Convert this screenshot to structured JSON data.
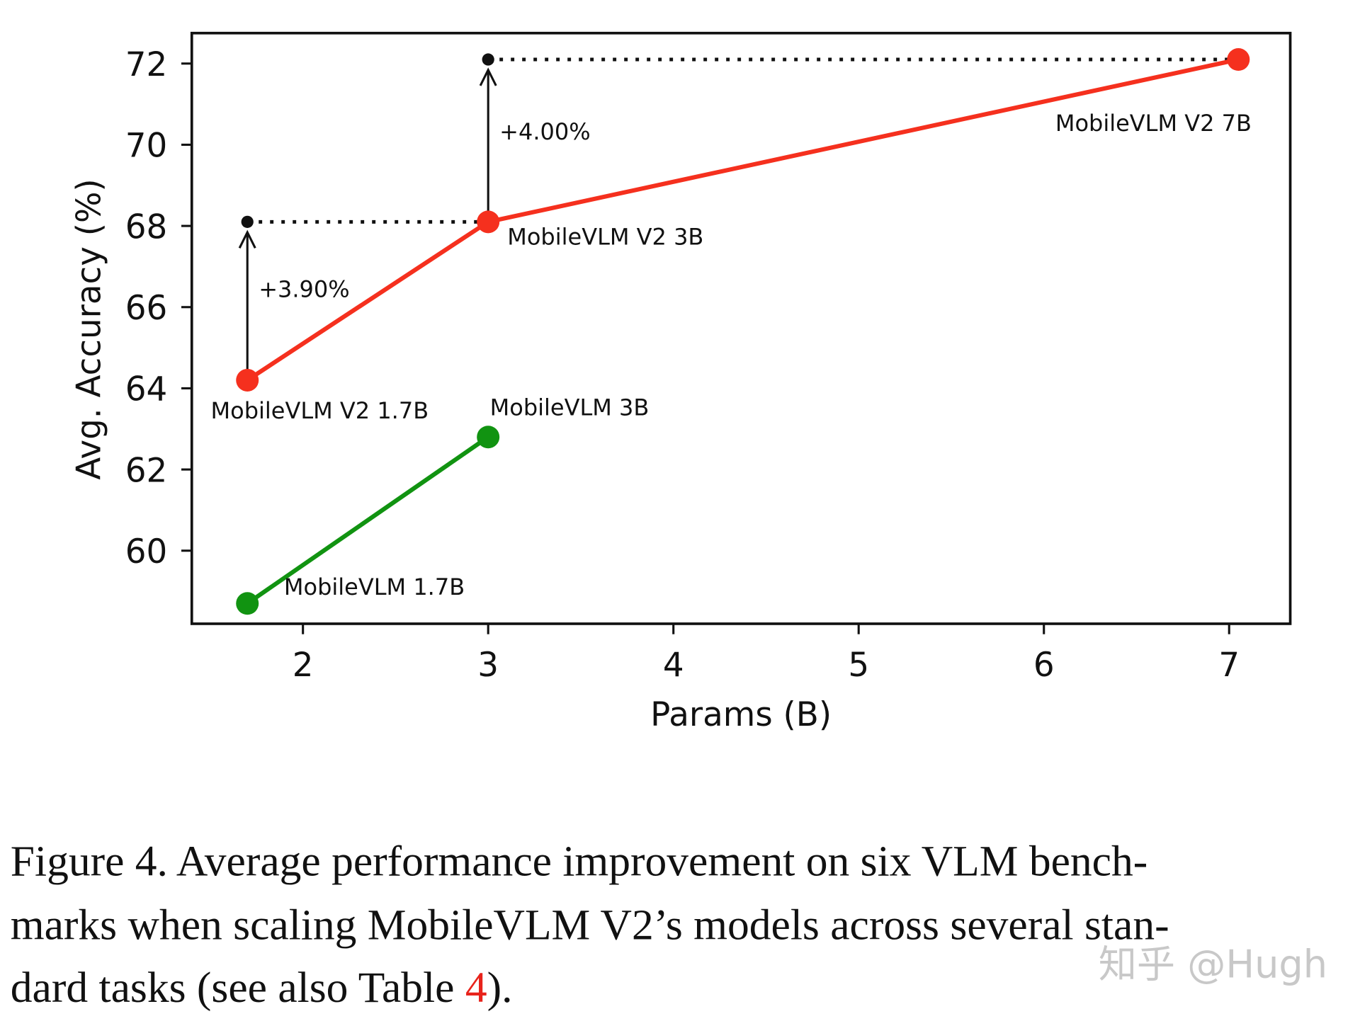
{
  "chart_data": {
    "type": "line",
    "xlabel": "Params (B)",
    "ylabel": "Avg. Accuracy (%)",
    "xlim": [
      1.4,
      7.33
    ],
    "ylim": [
      58.2,
      72.75
    ],
    "xticks": [
      2,
      3,
      4,
      5,
      6,
      7
    ],
    "yticks": [
      60,
      62,
      64,
      66,
      68,
      70,
      72
    ],
    "grid": false,
    "series": [
      {
        "color": "#f5301e",
        "points": [
          {
            "x": 1.7,
            "y": 64.2,
            "label": "MobileVLM V2 1.7B"
          },
          {
            "x": 3.0,
            "y": 68.1,
            "label": "MobileVLM V2 3B"
          },
          {
            "x": 7.05,
            "y": 72.1,
            "label": "MobileVLM V2 7B"
          }
        ]
      },
      {
        "color": "#119311",
        "points": [
          {
            "x": 1.7,
            "y": 58.7,
            "label": "MobileVLM 1.7B"
          },
          {
            "x": 3.0,
            "y": 62.8,
            "label": "MobileVLM 3B"
          }
        ]
      }
    ],
    "annotations": [
      {
        "text": "+3.90%",
        "x": 1.7,
        "from": 64.2,
        "to": 68.1
      },
      {
        "text": "+4.00%",
        "x": 3.0,
        "from": 68.1,
        "to": 72.1
      }
    ]
  },
  "caption": {
    "lines": [
      "Figure 4.  Average performance improvement on six VLM bench-",
      "marks when scaling MobileVLM V2’s models across several stan-"
    ],
    "last_prefix": "dard tasks (see also Table ",
    "ref": "4",
    "last_suffix": ").",
    "ref_color": "#e8231b"
  },
  "watermark": "知乎 @Hugh"
}
